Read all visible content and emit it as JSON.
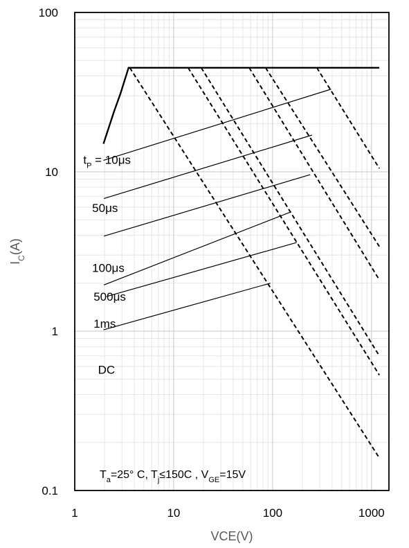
{
  "chart_data": {
    "type": "line",
    "xlabel": "VCE(V)",
    "ylabel_main": "I",
    "ylabel_sub": "C",
    "ylabel_tail": "(A)",
    "xscale": "log",
    "yscale": "log",
    "xlim": [
      1,
      1500
    ],
    "ylim": [
      0.1,
      100
    ],
    "xticks": [
      {
        "value": 1,
        "label": "1"
      },
      {
        "value": 10,
        "label": "10"
      },
      {
        "value": 100,
        "label": "100"
      },
      {
        "value": 1000,
        "label": "1000"
      }
    ],
    "yticks": [
      {
        "value": 100,
        "label": "100"
      },
      {
        "value": 10,
        "label": "10"
      },
      {
        "value": 1,
        "label": "1"
      },
      {
        "value": 0.1,
        "label": "0.1"
      }
    ],
    "grid": true,
    "limit_curve": {
      "style": "solid",
      "points": [
        [
          1.95,
          15
        ],
        [
          2.5,
          24
        ],
        [
          2.9,
          31
        ],
        [
          3.5,
          45
        ],
        [
          1200,
          45
        ]
      ]
    },
    "series": [
      {
        "style": "dashed",
        "points": [
          [
            3.6,
            45
          ],
          [
            1200,
            0.16
          ]
        ]
      },
      {
        "style": "dashed",
        "points": [
          [
            14,
            45
          ],
          [
            1200,
            0.53
          ]
        ]
      },
      {
        "style": "dashed",
        "points": [
          [
            19,
            45
          ],
          [
            1200,
            0.7
          ]
        ]
      },
      {
        "style": "dashed",
        "points": [
          [
            58,
            45
          ],
          [
            1200,
            2.1
          ]
        ]
      },
      {
        "style": "dashed",
        "points": [
          [
            85,
            45
          ],
          [
            1200,
            3.4
          ]
        ]
      },
      {
        "style": "dashed",
        "points": [
          [
            280,
            45
          ],
          [
            1200,
            10.5
          ]
        ]
      }
    ],
    "annotations": [
      {
        "id": "tp10",
        "label_main": "t",
        "label_sub": "P",
        "label_tail": " = 10μs",
        "text_at": [
          1.22,
          11.2
        ],
        "leader": [
          [
            1.95,
            11.8
          ],
          [
            390,
            33
          ]
        ]
      },
      {
        "id": "us50",
        "label": "50μs",
        "text_at": [
          1.5,
          5.6
        ],
        "leader": [
          [
            1.97,
            6.8
          ],
          [
            250,
            17
          ]
        ]
      },
      {
        "id": "us100",
        "label": "100μs",
        "text_at": [
          1.5,
          2.35
        ],
        "leader": [
          [
            1.97,
            3.95
          ],
          [
            240,
            9.6
          ]
        ]
      },
      {
        "id": "us500",
        "label": "500μs",
        "text_at": [
          1.55,
          1.55
        ],
        "leader": [
          [
            1.97,
            1.95
          ],
          [
            153,
            5.6
          ]
        ]
      },
      {
        "id": "ms1",
        "label": "1ms",
        "text_at": [
          1.55,
          1.05
        ],
        "leader": [
          [
            2.1,
            1.65
          ],
          [
            175,
            3.6
          ]
        ]
      },
      {
        "id": "dc",
        "label": "DC",
        "text_at": [
          1.72,
          0.54
        ],
        "leader": [
          [
            1.95,
            1.02
          ],
          [
            95,
            2.0
          ]
        ]
      }
    ],
    "conditions": {
      "t_main": "T",
      "t_sub": "a",
      "t_text": "=25° C, T",
      "tj_sub": "j",
      "tj_text": "≤150C , V",
      "vge_sub": "GE",
      "vge_text": "=15V"
    }
  }
}
